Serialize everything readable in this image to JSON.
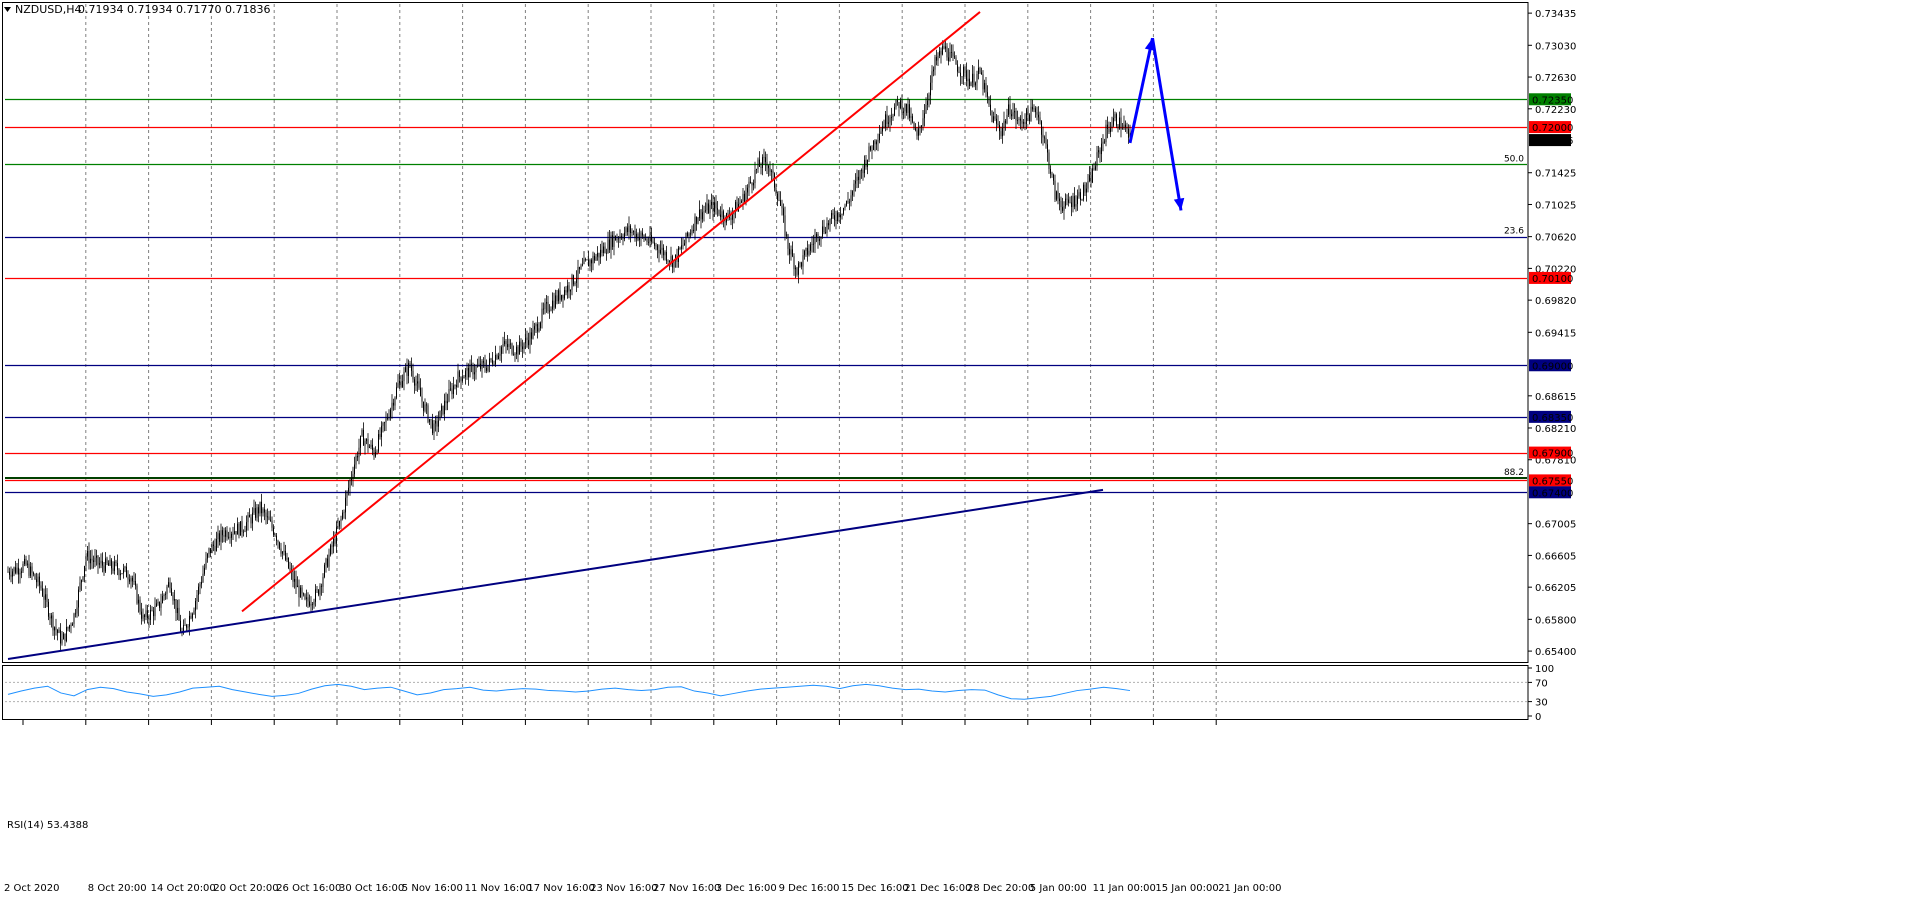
{
  "header": {
    "symbol": "NZDUSD,H4",
    "quotes": "0.71934 0.71934 0.71770 0.71836"
  },
  "colors": {
    "candle": "#000000",
    "grid": "#808080",
    "red_line": "#ff0000",
    "green_line": "#008000",
    "blue_line": "#000080",
    "arrow": "#0000ff",
    "rsi": "#1e90ff",
    "current_price_bg": "#000000"
  },
  "chart_data": [
    {
      "type": "candlestick",
      "title": "NZDUSD,H4",
      "y_ticks": [
        "0.73435",
        "0.73030",
        "0.72630",
        "0.72230",
        "0.71425",
        "0.71025",
        "0.70620",
        "0.70220",
        "0.69820",
        "0.69415",
        "0.68615",
        "0.68210",
        "0.67810",
        "0.67005",
        "0.66605",
        "0.66205",
        "0.65800",
        "0.65400"
      ],
      "ylim": [
        0.6525,
        0.7355
      ],
      "x_ticks": [
        "2 Oct 2020",
        "8 Oct 20:00",
        "14 Oct 20:00",
        "20 Oct 20:00",
        "26 Oct 16:00",
        "30 Oct 16:00",
        "5 Nov 16:00",
        "11 Nov 16:00",
        "17 Nov 16:00",
        "23 Nov 16:00",
        "27 Nov 16:00",
        "3 Dec 16:00",
        "9 Dec 16:00",
        "15 Dec 16:00",
        "21 Dec 16:00",
        "28 Dec 20:00",
        "5 Jan 00:00",
        "11 Jan 00:00",
        "15 Jan 00:00",
        "21 Jan 00:00"
      ],
      "price_path": [
        [
          0,
          0.664
        ],
        [
          12,
          0.6648
        ],
        [
          22,
          0.662
        ],
        [
          30,
          0.6575
        ],
        [
          36,
          0.6552
        ],
        [
          44,
          0.6585
        ],
        [
          52,
          0.666
        ],
        [
          60,
          0.665
        ],
        [
          72,
          0.6645
        ],
        [
          82,
          0.6635
        ],
        [
          90,
          0.658
        ],
        [
          100,
          0.6595
        ],
        [
          108,
          0.6628
        ],
        [
          116,
          0.656
        ],
        [
          124,
          0.6598
        ],
        [
          134,
          0.6665
        ],
        [
          144,
          0.669
        ],
        [
          156,
          0.6695
        ],
        [
          168,
          0.672
        ],
        [
          178,
          0.669
        ],
        [
          190,
          0.663
        ],
        [
          198,
          0.66
        ],
        [
          206,
          0.6612
        ],
        [
          214,
          0.666
        ],
        [
          222,
          0.6705
        ],
        [
          230,
          0.677
        ],
        [
          236,
          0.681
        ],
        [
          244,
          0.679
        ],
        [
          252,
          0.683
        ],
        [
          260,
          0.6875
        ],
        [
          268,
          0.69
        ],
        [
          276,
          0.6855
        ],
        [
          284,
          0.6818
        ],
        [
          292,
          0.6855
        ],
        [
          300,
          0.6885
        ],
        [
          310,
          0.6895
        ],
        [
          320,
          0.69
        ],
        [
          330,
          0.6925
        ],
        [
          340,
          0.692
        ],
        [
          350,
          0.694
        ],
        [
          358,
          0.697
        ],
        [
          366,
          0.6985
        ],
        [
          374,
          0.7
        ],
        [
          384,
          0.7025
        ],
        [
          394,
          0.704
        ],
        [
          404,
          0.706
        ],
        [
          414,
          0.707
        ],
        [
          424,
          0.706
        ],
        [
          434,
          0.7048
        ],
        [
          444,
          0.703
        ],
        [
          452,
          0.7058
        ],
        [
          460,
          0.709
        ],
        [
          470,
          0.71
        ],
        [
          480,
          0.7085
        ],
        [
          490,
          0.711
        ],
        [
          500,
          0.715
        ],
        [
          506,
          0.7158
        ],
        [
          514,
          0.711
        ],
        [
          520,
          0.705
        ],
        [
          526,
          0.702
        ],
        [
          532,
          0.704
        ],
        [
          540,
          0.7065
        ],
        [
          550,
          0.7085
        ],
        [
          560,
          0.7105
        ],
        [
          570,
          0.715
        ],
        [
          578,
          0.7185
        ],
        [
          586,
          0.7212
        ],
        [
          594,
          0.723
        ],
        [
          600,
          0.722
        ],
        [
          606,
          0.7185
        ],
        [
          612,
          0.723
        ],
        [
          618,
          0.728
        ],
        [
          624,
          0.73
        ],
        [
          630,
          0.7283
        ],
        [
          636,
          0.727
        ],
        [
          642,
          0.7258
        ],
        [
          648,
          0.7268
        ],
        [
          656,
          0.7212
        ],
        [
          662,
          0.7195
        ],
        [
          668,
          0.7225
        ],
        [
          674,
          0.7205
        ],
        [
          680,
          0.7215
        ],
        [
          686,
          0.7222
        ],
        [
          692,
          0.7175
        ],
        [
          698,
          0.7115
        ],
        [
          704,
          0.71
        ],
        [
          712,
          0.711
        ],
        [
          720,
          0.7125
        ],
        [
          726,
          0.716
        ],
        [
          732,
          0.7195
        ],
        [
          738,
          0.721
        ],
        [
          744,
          0.72
        ],
        [
          748,
          0.7184
        ]
      ],
      "n_bars": 749,
      "current_price": "0.71836",
      "horizontal_levels": [
        {
          "price": 0.7235,
          "label": "0.72350",
          "color": "#008000",
          "labeled": true
        },
        {
          "price": 0.72,
          "label": "0.72000",
          "color": "#ff0000",
          "labeled": true
        },
        {
          "price": 0.7153,
          "label": "",
          "color": "#008000",
          "labeled": false
        },
        {
          "price": 0.7062,
          "label": "",
          "color": "#000080",
          "labeled": false
        },
        {
          "price": 0.701,
          "label": "0.70100",
          "color": "#ff0000",
          "labeled": true
        },
        {
          "price": 0.69,
          "label": "0.69000",
          "color": "#000080",
          "labeled": true
        },
        {
          "price": 0.6835,
          "label": "0.68350",
          "color": "#000080",
          "labeled": true
        },
        {
          "price": 0.679,
          "label": "0.67900",
          "color": "#ff0000",
          "labeled": true
        },
        {
          "price": 0.6755,
          "label": "0.67550",
          "color": "#ff0000",
          "labeled": true
        },
        {
          "price": 0.674,
          "label": "0.67400",
          "color": "#000080",
          "labeled": true
        }
      ],
      "fibo_labels": [
        {
          "text": "50.0",
          "price": 0.7153,
          "color": "#008000"
        },
        {
          "text": "23.6",
          "price": 0.7062,
          "color": "#000080"
        },
        {
          "text": "88.2",
          "price": 0.6758,
          "color": "#000080"
        }
      ],
      "trendlines": [
        {
          "name": "red-trendline",
          "color": "#ff0000",
          "from": [
            156,
            0.659
          ],
          "to": [
            648,
            0.7345
          ]
        },
        {
          "name": "blue-trendline",
          "color": "#000080",
          "from": [
            0,
            0.653
          ],
          "to": [
            730,
            0.6743
          ]
        }
      ],
      "forecast_arrows": [
        {
          "name": "forecast-up-arrow",
          "from": [
            748,
            0.718
          ],
          "to": [
            763,
            0.7312
          ]
        },
        {
          "name": "forecast-down-arrow",
          "from": [
            763,
            0.7312
          ],
          "to": [
            782,
            0.7095
          ]
        }
      ]
    },
    {
      "type": "line",
      "title": "RSI(14) 53.4388",
      "ylim": [
        0,
        100
      ],
      "y_ticks": [
        "100",
        "70",
        "30",
        "0"
      ],
      "levels": [
        70,
        30
      ],
      "values": [
        45,
        52,
        58,
        62,
        48,
        42,
        55,
        60,
        57,
        50,
        46,
        41,
        44,
        50,
        58,
        60,
        62,
        55,
        50,
        45,
        41,
        43,
        47,
        56,
        63,
        66,
        62,
        55,
        58,
        60,
        52,
        44,
        48,
        55,
        57,
        60,
        54,
        52,
        55,
        57,
        56,
        53,
        52,
        50,
        52,
        56,
        58,
        55,
        53,
        55,
        60,
        61,
        52,
        48,
        42,
        47,
        52,
        56,
        58,
        60,
        62,
        64,
        62,
        57,
        63,
        66,
        63,
        58,
        55,
        56,
        52,
        50,
        53,
        55,
        54,
        44,
        36,
        35,
        38,
        41,
        47,
        53,
        56,
        60,
        57,
        53
      ]
    }
  ]
}
